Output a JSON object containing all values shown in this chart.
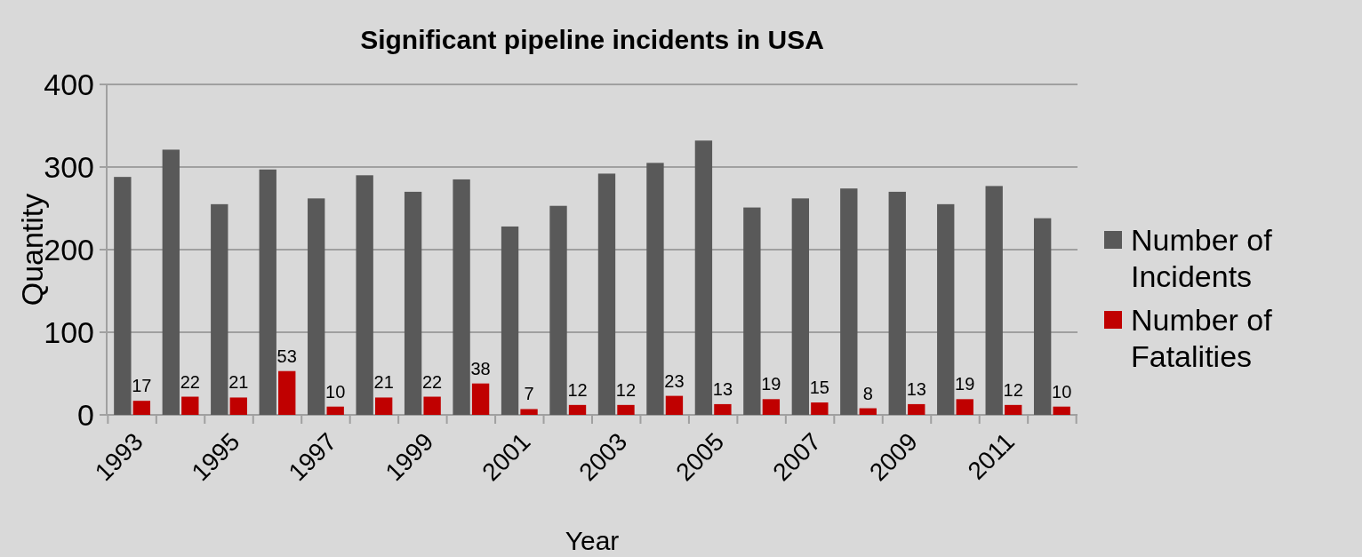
{
  "chart_data": {
    "type": "bar",
    "title": "Significant pipeline incidents in USA",
    "xlabel": "Year",
    "ylabel": "Quantity",
    "categories": [
      "1993",
      null,
      "1995",
      null,
      "1997",
      null,
      "1999",
      null,
      "2001",
      null,
      "2003",
      null,
      "2005",
      null,
      "2007",
      null,
      "2009",
      null,
      "2011",
      null
    ],
    "series": [
      {
        "name": "Number of Incidents",
        "color": "#595959",
        "values": [
          288,
          321,
          255,
          297,
          262,
          290,
          270,
          285,
          228,
          253,
          292,
          305,
          332,
          251,
          262,
          274,
          270,
          255,
          277,
          238
        ]
      },
      {
        "name": "Number of Fatalities",
        "color": "#c00000",
        "values": [
          17,
          22,
          21,
          53,
          10,
          21,
          22,
          38,
          7,
          12,
          12,
          23,
          13,
          19,
          15,
          8,
          13,
          19,
          12,
          10
        ],
        "value_labels": [
          "17",
          "22",
          "21",
          "53",
          "10",
          "21",
          "22",
          "38",
          "7",
          "12",
          "12",
          "23",
          "13",
          "19",
          "15",
          "8",
          "13",
          "19",
          "12",
          "10"
        ]
      }
    ],
    "ylim": [
      0,
      400
    ],
    "yticks": [
      0,
      100,
      200,
      300,
      400
    ],
    "grid": "y",
    "legend": "right"
  }
}
